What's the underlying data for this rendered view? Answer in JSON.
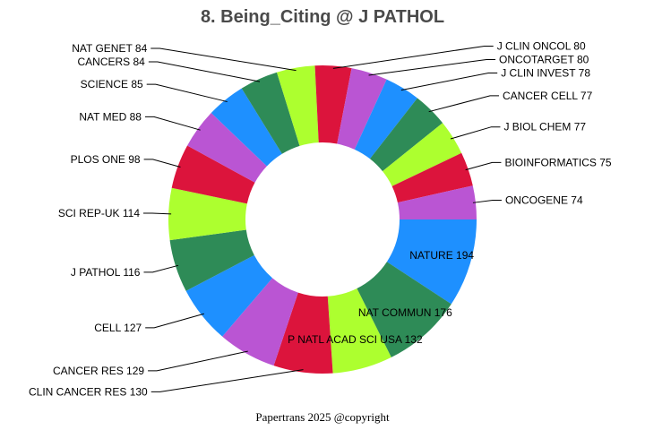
{
  "chart_data": {
    "type": "pie",
    "donut": true,
    "title": "8. Being_Citing @ J PATHOL",
    "footer": "Papertrans 2025 @copyright",
    "slices": [
      {
        "label": "NATURE 194",
        "name": "NATURE",
        "value": 194,
        "color": "#1e90ff",
        "label_inside": true
      },
      {
        "label": "NAT COMMUN 176",
        "name": "NAT COMMUN",
        "value": 176,
        "color": "#2e8b57",
        "label_inside": true
      },
      {
        "label": "P NATL ACAD SCI USA 132",
        "name": "P NATL ACAD SCI USA",
        "value": 132,
        "color": "#adff2f",
        "label_inside": true
      },
      {
        "label": "CLIN CANCER RES 130",
        "name": "CLIN CANCER RES",
        "value": 130,
        "color": "#dc143c",
        "label_inside": false
      },
      {
        "label": "CANCER RES 129",
        "name": "CANCER RES",
        "value": 129,
        "color": "#ba55d3",
        "label_inside": false
      },
      {
        "label": "CELL 127",
        "name": "CELL",
        "value": 127,
        "color": "#1e90ff",
        "label_inside": false
      },
      {
        "label": "J PATHOL 116",
        "name": "J PATHOL",
        "value": 116,
        "color": "#2e8b57",
        "label_inside": false
      },
      {
        "label": "SCI REP-UK 114",
        "name": "SCI REP-UK",
        "value": 114,
        "color": "#adff2f",
        "label_inside": false
      },
      {
        "label": "PLOS ONE 98",
        "name": "PLOS ONE",
        "value": 98,
        "color": "#dc143c",
        "label_inside": false
      },
      {
        "label": "NAT MED 88",
        "name": "NAT MED",
        "value": 88,
        "color": "#ba55d3",
        "label_inside": false
      },
      {
        "label": "SCIENCE 85",
        "name": "SCIENCE",
        "value": 85,
        "color": "#1e90ff",
        "label_inside": false
      },
      {
        "label": "CANCERS 84",
        "name": "CANCERS",
        "value": 84,
        "color": "#2e8b57",
        "label_inside": false
      },
      {
        "label": "NAT GENET 84",
        "name": "NAT GENET",
        "value": 84,
        "color": "#adff2f",
        "label_inside": false
      },
      {
        "label": "J CLIN ONCOL 80",
        "name": "J CLIN ONCOL",
        "value": 80,
        "color": "#dc143c",
        "label_inside": false
      },
      {
        "label": "ONCOTARGET 80",
        "name": "ONCOTARGET",
        "value": 80,
        "color": "#ba55d3",
        "label_inside": false
      },
      {
        "label": "J CLIN INVEST 78",
        "name": "J CLIN INVEST",
        "value": 78,
        "color": "#1e90ff",
        "label_inside": false
      },
      {
        "label": "CANCER CELL 77",
        "name": "CANCER CELL",
        "value": 77,
        "color": "#2e8b57",
        "label_inside": false
      },
      {
        "label": "J BIOL CHEM 77",
        "name": "J BIOL CHEM",
        "value": 77,
        "color": "#adff2f",
        "label_inside": false
      },
      {
        "label": "BIOINFORMATICS 75",
        "name": "BIOINFORMATICS",
        "value": 75,
        "color": "#dc143c",
        "label_inside": false
      },
      {
        "label": "ONCOGENE 74",
        "name": "ONCOGENE",
        "value": 74,
        "color": "#ba55d3",
        "label_inside": false
      }
    ]
  }
}
